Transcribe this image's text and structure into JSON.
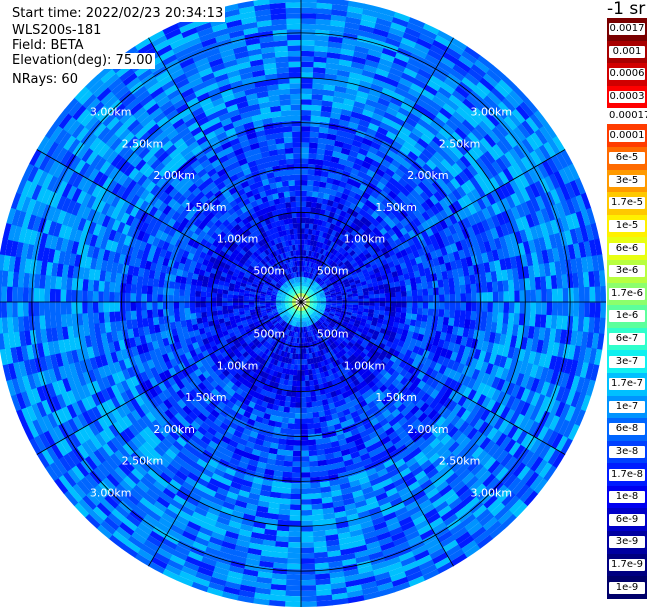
{
  "info": {
    "start_time": "Start time: 2022/02/23 20:34:13",
    "instrument": "WLS200s-181",
    "field": "Field: BETA",
    "elevation": "Elevation(deg): 75.00",
    "nrays": "NRays: 60"
  },
  "colorbar": {
    "unit": "-1 sr",
    "top_labels": [
      "0.0017",
      "0.001",
      "0.0006",
      "0.0003"
    ],
    "top_colors": [
      "#7a0000",
      "#a80000",
      "#d10000",
      "#ff0000"
    ],
    "separator_label": "0.00017",
    "labels": [
      "0.0001",
      "6e-5",
      "3e-5",
      "1.7e-5",
      "1e-5",
      "6e-6",
      "3e-6",
      "1.7e-6",
      "1e-6",
      "6e-7",
      "3e-7",
      "1.7e-7",
      "1e-7",
      "6e-8",
      "3e-8",
      "1.7e-8",
      "1e-8",
      "6e-9",
      "3e-9",
      "1.7e-9",
      "1e-9"
    ],
    "colors": [
      "#ff3c00",
      "#ff6a00",
      "#ff9a00",
      "#ffc800",
      "#fff000",
      "#e8ff12",
      "#b8ff40",
      "#8cff6c",
      "#5cff9c",
      "#30ffcc",
      "#10f0f0",
      "#00c0ff",
      "#0094ff",
      "#0066ff",
      "#0040ff",
      "#001cff",
      "#0000f0",
      "#0000c8",
      "#0000a0",
      "#000080",
      "#00006a"
    ]
  },
  "chart_data": {
    "type": "polar_ppi",
    "field": "BETA",
    "nrays": 60,
    "elevation_deg": 75.0,
    "range_rings_km": [
      0.5,
      1.0,
      1.5,
      2.0,
      2.5,
      3.0
    ],
    "ring_labels": [
      "500m",
      "1.00km",
      "1.50km",
      "2.00km",
      "2.50km",
      "3.00km"
    ],
    "spokes_deg": [
      0,
      30,
      60,
      90,
      120,
      150,
      180,
      210,
      240,
      270,
      300,
      330
    ],
    "color_scale": "log",
    "value_range": [
      1e-09,
      0.0017
    ],
    "near_range_values": [
      {
        "range_km": 0.05,
        "beta": 3e-06
      },
      {
        "range_km": 0.15,
        "beta": 1e-07
      },
      {
        "range_km": 0.25,
        "beta": 1.7e-08
      },
      {
        "range_km": 0.5,
        "beta": 6e-09
      },
      {
        "range_km": 3.0,
        "beta": 6e-09
      }
    ]
  }
}
